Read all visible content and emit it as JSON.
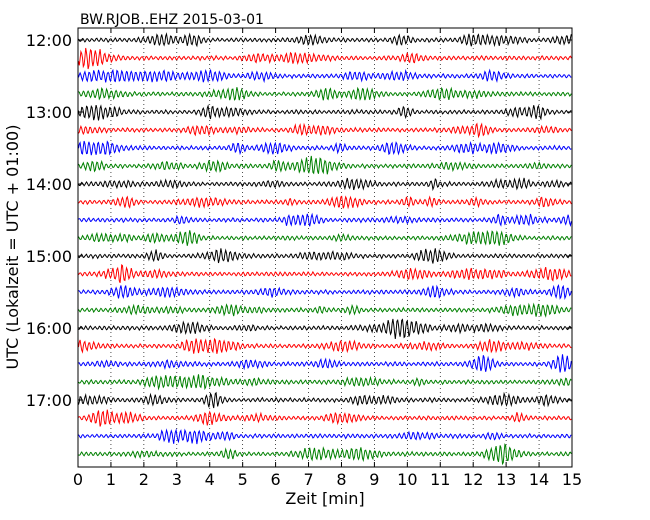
{
  "chart_data": {
    "type": "line",
    "title": "BW.RJOB..EHZ 2015-03-01",
    "xlabel": "Zeit  [min]",
    "ylabel": "UTC (Lokalzeit = UTC + 01:00)",
    "xlim": [
      0,
      15
    ],
    "x_ticks": [
      "0",
      "1",
      "2",
      "3",
      "4",
      "5",
      "6",
      "7",
      "8",
      "9",
      "10",
      "11",
      "12",
      "13",
      "14",
      "15"
    ],
    "y_tick_labels": [
      "12:00",
      "13:00",
      "14:00",
      "15:00",
      "16:00",
      "17:00"
    ],
    "trace_start_times": [
      "12:00",
      "12:15",
      "12:30",
      "12:45",
      "13:00",
      "13:15",
      "13:30",
      "13:45",
      "14:00",
      "14:15",
      "14:30",
      "14:45",
      "15:00",
      "15:15",
      "15:30",
      "15:45",
      "16:00",
      "16:15",
      "16:30",
      "16:45",
      "17:00",
      "17:15",
      "17:30",
      "17:45"
    ],
    "series_colors": [
      "#000000",
      "#ff0000",
      "#0000ff",
      "#008000"
    ],
    "grid": {
      "vertical": "dotted",
      "horizontal": false
    }
  }
}
